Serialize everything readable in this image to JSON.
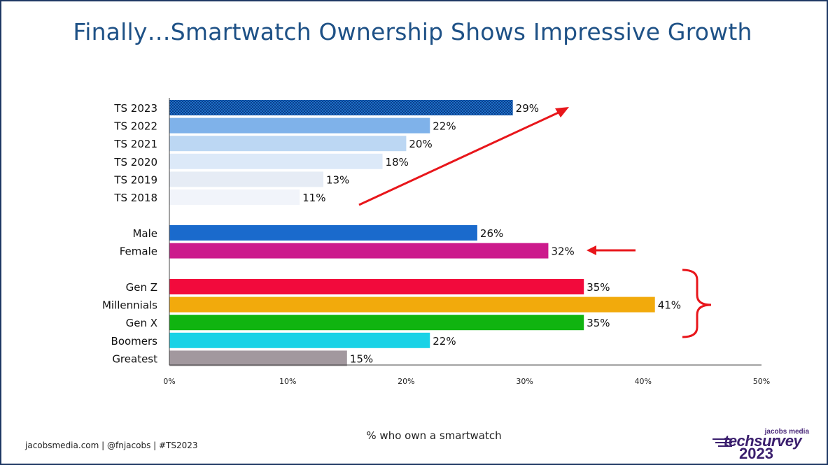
{
  "title": "Finally…Smartwatch Ownership Shows Impressive Growth",
  "footer": "jacobsmedia.com   |   @fnjacobs   |   #TS2023",
  "logo": {
    "top": "jacobs media",
    "main": "techsurvey",
    "year": "2023"
  },
  "colors": {
    "title": "#1e5186",
    "frame": "#1f3864",
    "arrow": "#e8161b"
  },
  "chart_data": {
    "type": "bar",
    "orientation": "horizontal",
    "xlabel": "% who own a smartwatch",
    "xlim": [
      0,
      50
    ],
    "xticks": [
      "0%",
      "10%",
      "20%",
      "30%",
      "40%",
      "50%"
    ],
    "grid": false,
    "groups": [
      {
        "name": "years",
        "categories": [
          "TS 2023",
          "TS 2022",
          "TS 2021",
          "TS 2020",
          "TS 2019",
          "TS 2018"
        ],
        "values": [
          29,
          22,
          20,
          18,
          13,
          11
        ],
        "labels": [
          "29%",
          "22%",
          "20%",
          "18%",
          "13%",
          "11%"
        ],
        "colors": [
          "#1f6fc8",
          "#7fb2ea",
          "#bcd7f3",
          "#dce9f8",
          "#e6ecf5",
          "#f1f4fa"
        ],
        "patterned": [
          true,
          false,
          false,
          false,
          false,
          false
        ]
      },
      {
        "name": "gender",
        "categories": [
          "Male",
          "Female"
        ],
        "values": [
          26,
          32
        ],
        "labels": [
          "26%",
          "32%"
        ],
        "colors": [
          "#1a6acc",
          "#cc1a8c"
        ],
        "patterned": [
          false,
          false
        ]
      },
      {
        "name": "generations",
        "categories": [
          "Gen Z",
          "Millennials",
          "Gen X",
          "Boomers",
          "Greatest"
        ],
        "values": [
          35,
          41,
          35,
          22,
          15
        ],
        "labels": [
          "35%",
          "41%",
          "35%",
          "22%",
          "15%"
        ],
        "colors": [
          "#f20a3c",
          "#f2aa0c",
          "#10b410",
          "#1ad2e6",
          "#a2989e"
        ],
        "patterned": [
          false,
          false,
          false,
          false,
          false
        ]
      }
    ],
    "annotations": [
      "growth-arrow",
      "female-arrow",
      "generation-brace"
    ]
  }
}
